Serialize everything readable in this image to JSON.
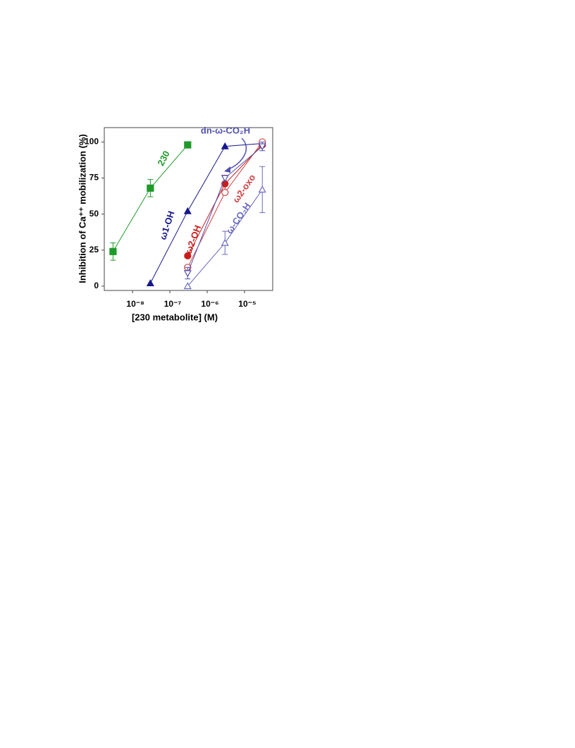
{
  "chart_data": {
    "type": "line",
    "x_label": "[230 metabolite] (M)",
    "y_label": "Inhibition of Ca⁺⁺ mobilization (%)",
    "x_scale": "log",
    "xlim": [
      1.75e-09,
      5.7e-05
    ],
    "xticks": [
      {
        "value": 1e-08,
        "label": "10⁻⁸"
      },
      {
        "value": 1e-07,
        "label": "10⁻⁷"
      },
      {
        "value": 1e-06,
        "label": "10⁻⁶"
      },
      {
        "value": 1e-05,
        "label": "10⁻⁵"
      }
    ],
    "ylim": [
      -3,
      110
    ],
    "yticks": [
      0,
      25,
      50,
      75,
      100
    ],
    "series": [
      {
        "name": "230",
        "color": "#1f9a2a",
        "marker": "square",
        "filled": true,
        "x": [
          3e-09,
          3e-08,
          3e-07
        ],
        "values": [
          24,
          68,
          98
        ],
        "errors": [
          6,
          6,
          null
        ]
      },
      {
        "name": "ω1-OH",
        "color": "#17178c",
        "marker": "triangle",
        "filled": true,
        "x": [
          3e-08,
          3e-07,
          3e-06,
          3e-05
        ],
        "values": [
          2,
          52,
          97,
          99
        ],
        "errors": [
          null,
          null,
          null,
          null
        ]
      },
      {
        "name": "ω2-OH",
        "color": "#c81e1e",
        "marker": "circle",
        "filled": true,
        "x": [
          3e-07,
          3e-06,
          3e-05
        ],
        "values": [
          21,
          71,
          98
        ],
        "errors": [
          null,
          6,
          null
        ]
      },
      {
        "name": "ω2-oxo",
        "color": "#d04040",
        "marker": "circle",
        "filled": false,
        "x": [
          3e-07,
          3e-06,
          3e-05
        ],
        "values": [
          13,
          65,
          100
        ],
        "errors": [
          null,
          null,
          null
        ]
      },
      {
        "name": "dn-ω-CO₂H",
        "color": "#5050b0",
        "marker": "triangle-down",
        "filled": false,
        "x": [
          3e-07,
          3e-06,
          3e-05
        ],
        "values": [
          9,
          75,
          97
        ],
        "errors": [
          4,
          null,
          3
        ]
      },
      {
        "name": "ω-CO₂H",
        "color": "#6a6ac0",
        "marker": "triangle",
        "filled": false,
        "x": [
          3e-07,
          3e-06,
          3e-05
        ],
        "values": [
          0,
          30,
          67
        ],
        "errors": [
          null,
          8,
          16
        ]
      }
    ]
  }
}
